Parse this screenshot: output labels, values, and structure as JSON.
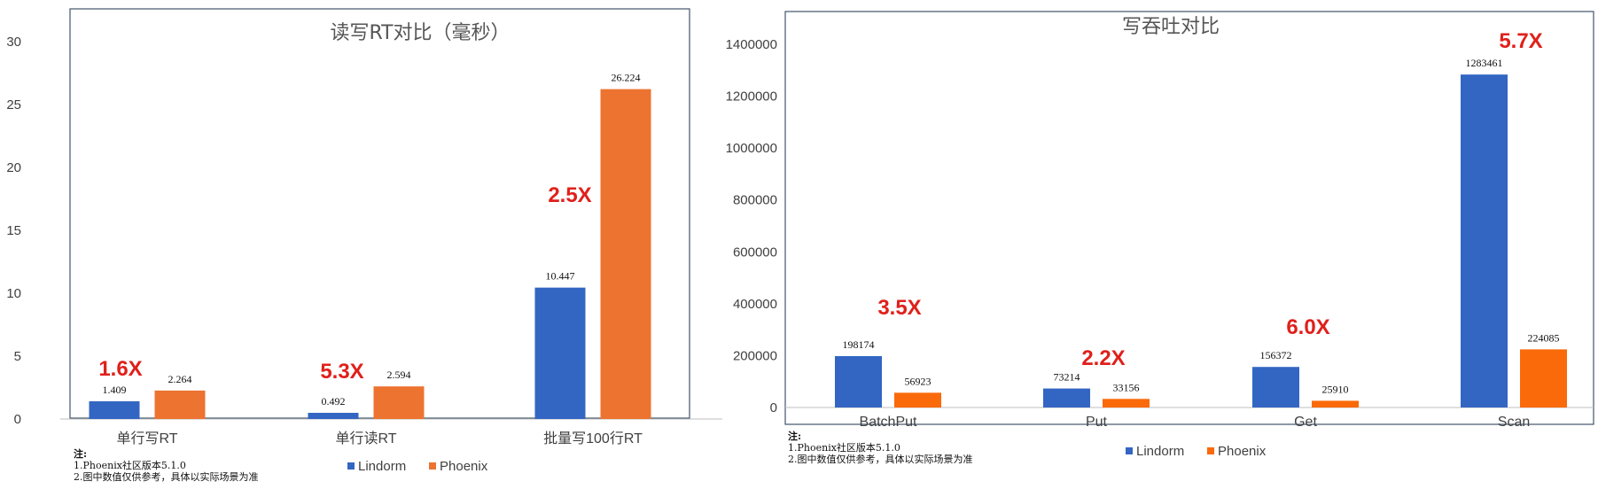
{
  "chart_data": [
    {
      "type": "bar",
      "title": "读写RT对比（毫秒）",
      "categories": [
        "单行写RT",
        "单行读RT",
        "批量写100行RT"
      ],
      "series": [
        {
          "name": "Lindorm",
          "values": [
            1.409,
            0.492,
            10.447
          ],
          "labels": [
            "1.409",
            "0.492",
            "10.447"
          ],
          "color": "#3366c3"
        },
        {
          "name": "Phoenix",
          "values": [
            2.264,
            2.594,
            26.224
          ],
          "labels": [
            "2.264",
            "2.594",
            "26.224"
          ],
          "color": "#ec7330"
        }
      ],
      "ratios": [
        "1.6X",
        "5.3X",
        "2.5X"
      ],
      "ylim": [
        0,
        30
      ],
      "yticks": [
        "0",
        "5",
        "10",
        "15",
        "20",
        "25",
        "30"
      ],
      "grid": false,
      "legend": "bottom",
      "notes": [
        "注:",
        "1.Phoenix社区版本5.1.0",
        "2.图中数值仅供参考，具体以实际场景为准"
      ]
    },
    {
      "type": "bar",
      "title": "写吞吐对比",
      "categories": [
        "BatchPut",
        "Put",
        "Get",
        "Scan"
      ],
      "series": [
        {
          "name": "Lindorm",
          "values": [
            198174,
            73214,
            156372,
            1283461
          ],
          "labels": [
            "198174",
            "73214",
            "156372",
            "1283461"
          ],
          "color": "#3366c3"
        },
        {
          "name": "Phoenix",
          "values": [
            56923,
            33156,
            25910,
            224085
          ],
          "labels": [
            "56923",
            "33156",
            "25910",
            "224085"
          ],
          "color": "#fa6a0a"
        }
      ],
      "ratios": [
        "3.5X",
        "2.2X",
        "6.0X",
        "5.7X"
      ],
      "ylim": [
        0,
        1400000
      ],
      "yticks": [
        "0",
        "200000",
        "400000",
        "600000",
        "800000",
        "1000000",
        "1200000",
        "1400000"
      ],
      "grid": false,
      "legend": "bottom",
      "notes": [
        "注:",
        "1.Phoenix社区版本5.1.0",
        "2.图中数值仅供参考，具体以实际场景为准"
      ]
    }
  ]
}
